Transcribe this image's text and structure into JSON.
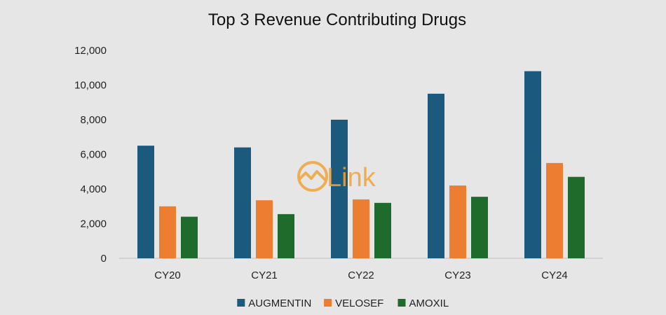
{
  "chart_data": {
    "type": "bar",
    "title": "Top 3 Revenue Contributing Drugs",
    "xlabel": "",
    "ylabel": "",
    "categories": [
      "CY20",
      "CY21",
      "CY22",
      "CY23",
      "CY24"
    ],
    "ylim": [
      0,
      12000
    ],
    "yticks": [
      0,
      2000,
      4000,
      6000,
      8000,
      10000,
      12000
    ],
    "ytick_labels": [
      "0",
      "2,000",
      "4,000",
      "6,000",
      "8,000",
      "10,000",
      "12,000"
    ],
    "grid": false,
    "legend_position": "bottom",
    "series": [
      {
        "name": "AUGMENTIN",
        "color": "#1b5a7d",
        "values": [
          6500,
          6400,
          8000,
          9500,
          10800
        ]
      },
      {
        "name": "VELOSEF",
        "color": "#ed7d31",
        "values": [
          3000,
          3350,
          3400,
          4200,
          5500
        ]
      },
      {
        "name": "AMOXIL",
        "color": "#1e6b2b",
        "values": [
          2400,
          2550,
          3200,
          3550,
          4700
        ]
      }
    ]
  },
  "watermark": {
    "text": "Link",
    "color": "#f0a43a"
  }
}
